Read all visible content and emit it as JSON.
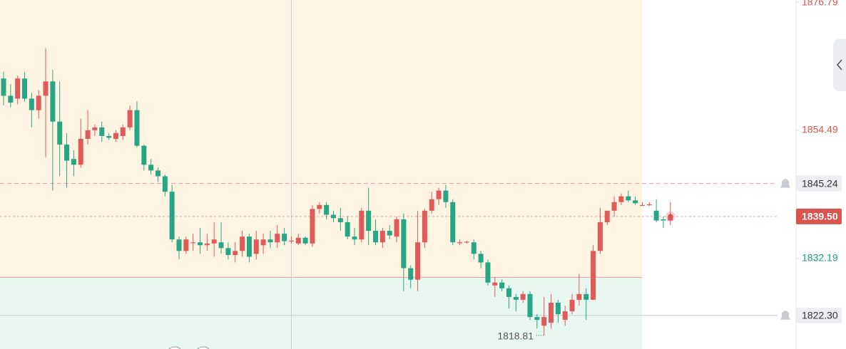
{
  "chart_data": {
    "type": "candlestick",
    "ylim": [
      1816.44,
      1877.16
    ],
    "yticks": [
      1876.79,
      1854.49,
      1832.19
    ],
    "up_color": "#e05a5a",
    "down_color": "#26a685",
    "zone_boundary": 1828.9,
    "alert_price": {
      "value": 1845.24,
      "label": "1845.24"
    },
    "current_price": {
      "value": 1839.5,
      "label": "1839.50"
    },
    "crosshair_price": {
      "value": 1822.3,
      "label": "1822.30"
    },
    "low_label": {
      "value": 1818.81,
      "label": "1818.81",
      "index": 77
    },
    "crosshair_index": 41,
    "open": [
      1863.5,
      1860.5,
      1860.0,
      1863.5,
      1860.0,
      1858.0,
      1860.5,
      1863.0,
      1856.0,
      1852.0,
      1849.5,
      1848.5,
      1853.0,
      1854.5,
      1855.0,
      1853.5,
      1853.0,
      1853.5,
      1855.0,
      1858.0,
      1851.8,
      1848.5,
      1847.5,
      1846.5,
      1843.8,
      1835.5,
      1833.5,
      1835.0,
      1835.0,
      1834.5,
      1834.8,
      1835.0,
      1834.0,
      1832.8,
      1833.5,
      1836.0,
      1833.0,
      1834.5,
      1835.5,
      1835.0,
      1836.5,
      1835.2,
      1834.8,
      1835.8,
      1834.8,
      1840.8,
      1841.5,
      1839.8,
      1839.2,
      1838.5,
      1836.0,
      1835.5,
      1840.5,
      1837.0,
      1835.0,
      1837.0,
      1836.0,
      1839.0,
      1830.5,
      1828.5,
      1835.0,
      1840.5,
      1842.5,
      1844.0,
      1842.0,
      1835.0,
      1835.0,
      1835.0,
      1833.0,
      1831.5,
      1827.5,
      1828.0,
      1827.0,
      1825.5,
      1825.0,
      1826.0,
      1822.0,
      1820.5,
      1821.0,
      1824.5,
      1821.5,
      1823.0,
      1825.0,
      1826.0,
      1825.0,
      1833.5,
      1838.5,
      1840.5,
      1842.0,
      1843.0,
      1842.3,
      1841.5,
      1841.5,
      1840.5,
      1839.0,
      1838.8
    ],
    "high": [
      1864.7,
      1862.5,
      1864.0,
      1864.6,
      1861.0,
      1861.5,
      1868.8,
      1865.0,
      1863.0,
      1854.0,
      1851.0,
      1856.5,
      1858.0,
      1855.5,
      1856.0,
      1854.0,
      1854.5,
      1855.5,
      1858.8,
      1859.5,
      1852.0,
      1849.5,
      1848.0,
      1846.8,
      1845.0,
      1836.0,
      1836.0,
      1836.5,
      1837.5,
      1836.5,
      1838.5,
      1838.5,
      1835.0,
      1835.0,
      1837.0,
      1836.5,
      1837.0,
      1836.5,
      1837.0,
      1838.0,
      1837.5,
      1836.0,
      1836.5,
      1836.0,
      1841.5,
      1842.0,
      1842.0,
      1840.5,
      1841.0,
      1839.5,
      1837.5,
      1841.0,
      1844.5,
      1839.0,
      1837.5,
      1838.0,
      1839.5,
      1840.0,
      1831.0,
      1840.5,
      1840.8,
      1843.8,
      1844.5,
      1845.0,
      1842.5,
      1835.5,
      1835.3,
      1835.5,
      1833.5,
      1832.0,
      1829.0,
      1828.5,
      1827.5,
      1826.0,
      1826.5,
      1826.5,
      1822.5,
      1825.5,
      1826.0,
      1825.0,
      1824.0,
      1826.0,
      1829.5,
      1827.0,
      1834.5,
      1841.0,
      1840.5,
      1843.0,
      1843.5,
      1844.0,
      1843.0,
      1842.0,
      1842.0,
      1842.5,
      1839.5,
      1842.0
    ],
    "low": [
      1858.8,
      1858.5,
      1859.0,
      1859.5,
      1855.0,
      1856.5,
      1849.8,
      1844.0,
      1846.5,
      1844.5,
      1846.5,
      1848.0,
      1852.0,
      1853.5,
      1852.5,
      1852.8,
      1852.5,
      1852.8,
      1854.5,
      1851.5,
      1847.5,
      1846.8,
      1845.5,
      1843.0,
      1835.0,
      1832.0,
      1833.0,
      1833.5,
      1833.0,
      1833.5,
      1832.5,
      1833.0,
      1832.0,
      1831.5,
      1832.5,
      1831.5,
      1832.0,
      1833.0,
      1834.0,
      1834.0,
      1834.5,
      1834.8,
      1834.5,
      1834.5,
      1834.2,
      1840.0,
      1839.0,
      1838.5,
      1837.0,
      1835.5,
      1834.5,
      1835.0,
      1834.5,
      1834.5,
      1834.0,
      1835.5,
      1835.0,
      1826.5,
      1827.0,
      1826.5,
      1834.0,
      1840.0,
      1841.5,
      1841.0,
      1834.5,
      1834.5,
      1834.8,
      1832.0,
      1830.5,
      1827.5,
      1825.5,
      1826.5,
      1823.5,
      1823.0,
      1824.5,
      1821.5,
      1820.0,
      1818.81,
      1820.0,
      1821.0,
      1820.5,
      1822.5,
      1824.0,
      1821.5,
      1825.0,
      1833.0,
      1838.0,
      1839.5,
      1841.5,
      1842.0,
      1841.5,
      1841.3,
      1841.3,
      1838.5,
      1837.5,
      1838.0
    ],
    "close": [
      1860.5,
      1859.3,
      1863.5,
      1860.0,
      1858.0,
      1860.5,
      1863.0,
      1856.0,
      1852.0,
      1849.2,
      1848.5,
      1853.0,
      1854.5,
      1855.0,
      1853.5,
      1853.2,
      1854.0,
      1855.0,
      1858.0,
      1851.8,
      1848.5,
      1847.5,
      1846.5,
      1843.8,
      1835.5,
      1833.5,
      1835.5,
      1835.0,
      1834.5,
      1834.8,
      1835.5,
      1834.0,
      1832.8,
      1833.5,
      1836.0,
      1832.5,
      1835.5,
      1835.5,
      1835.0,
      1836.5,
      1835.2,
      1835.3,
      1835.8,
      1834.8,
      1840.8,
      1841.5,
      1839.8,
      1839.2,
      1838.5,
      1836.0,
      1835.5,
      1840.5,
      1837.0,
      1835.0,
      1837.0,
      1836.2,
      1839.0,
      1830.5,
      1828.5,
      1835.0,
      1840.5,
      1842.5,
      1844.0,
      1842.0,
      1835.0,
      1835.0,
      1835.1,
      1833.0,
      1831.5,
      1828.0,
      1828.0,
      1827.0,
      1825.5,
      1825.0,
      1826.0,
      1822.0,
      1821.5,
      1822.0,
      1824.5,
      1822.5,
      1823.0,
      1825.0,
      1826.0,
      1825.0,
      1833.5,
      1838.5,
      1840.5,
      1842.0,
      1843.0,
      1842.3,
      1841.8,
      1841.5,
      1841.6,
      1838.8,
      1838.8,
      1839.5
    ]
  }
}
